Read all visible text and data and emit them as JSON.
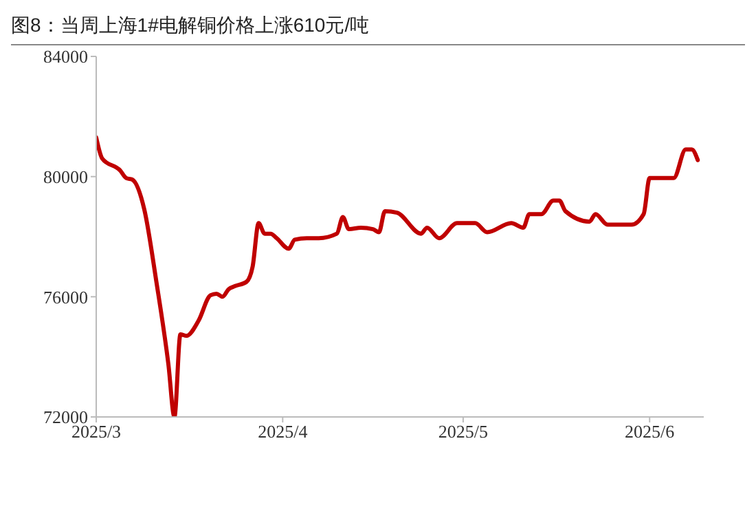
{
  "chart_data": {
    "type": "line",
    "title": "图8：当周上海1#电解铜价格上涨610元/吨",
    "x": [
      "2025-03-01",
      "2025-03-02",
      "2025-03-05",
      "2025-03-06",
      "2025-03-07",
      "2025-03-09",
      "2025-03-11",
      "2025-03-13",
      "2025-03-14",
      "2025-03-15",
      "2025-03-16",
      "2025-03-18",
      "2025-03-20",
      "2025-03-21",
      "2025-03-22",
      "2025-03-23",
      "2025-03-24",
      "2025-03-26",
      "2025-03-27",
      "2025-03-28",
      "2025-03-29",
      "2025-03-30",
      "2025-03-31",
      "2025-04-02",
      "2025-04-03",
      "2025-04-05",
      "2025-04-07",
      "2025-04-10",
      "2025-04-11",
      "2025-04-12",
      "2025-04-14",
      "2025-04-16",
      "2025-04-17",
      "2025-04-18",
      "2025-04-20",
      "2025-04-24",
      "2025-04-25",
      "2025-04-27",
      "2025-04-30",
      "2025-05-03",
      "2025-05-05",
      "2025-05-09",
      "2025-05-11",
      "2025-05-12",
      "2025-05-14",
      "2025-05-16",
      "2025-05-17",
      "2025-05-18",
      "2025-05-22",
      "2025-05-23",
      "2025-05-25",
      "2025-05-29",
      "2025-05-31",
      "2025-06-01",
      "2025-06-05",
      "2025-06-07",
      "2025-06-08",
      "2025-06-09"
    ],
    "series": [
      {
        "color": "#c00000",
        "values": [
          81300,
          80600,
          80200,
          79950,
          79900,
          78900,
          76500,
          73750,
          72000,
          74750,
          74700,
          75200,
          76050,
          76100,
          76000,
          76250,
          76350,
          76500,
          77000,
          78450,
          78100,
          78100,
          77950,
          77600,
          77900,
          77950,
          77950,
          78100,
          78650,
          78250,
          78300,
          78250,
          78150,
          78850,
          78800,
          78100,
          78300,
          77950,
          78450,
          78450,
          78150,
          78450,
          78300,
          78750,
          78750,
          79200,
          79200,
          78850,
          78500,
          78750,
          78400,
          78400,
          78750,
          79950,
          79950,
          80900,
          80900,
          80550
        ]
      }
    ],
    "xlim": [
      "2025-03-01",
      "2025-06-10"
    ],
    "xticks": [
      {
        "value": "2025-03-01",
        "label": "2025/3"
      },
      {
        "value": "2025-04-01",
        "label": "2025/4"
      },
      {
        "value": "2025-05-01",
        "label": "2025/5"
      },
      {
        "value": "2025-06-01",
        "label": "2025/6"
      }
    ],
    "ylim": [
      72000,
      84000
    ],
    "yticks": [
      72000,
      76000,
      80000,
      84000
    ],
    "grid": false,
    "legend": false,
    "marker": "none",
    "line_style": "solid"
  }
}
